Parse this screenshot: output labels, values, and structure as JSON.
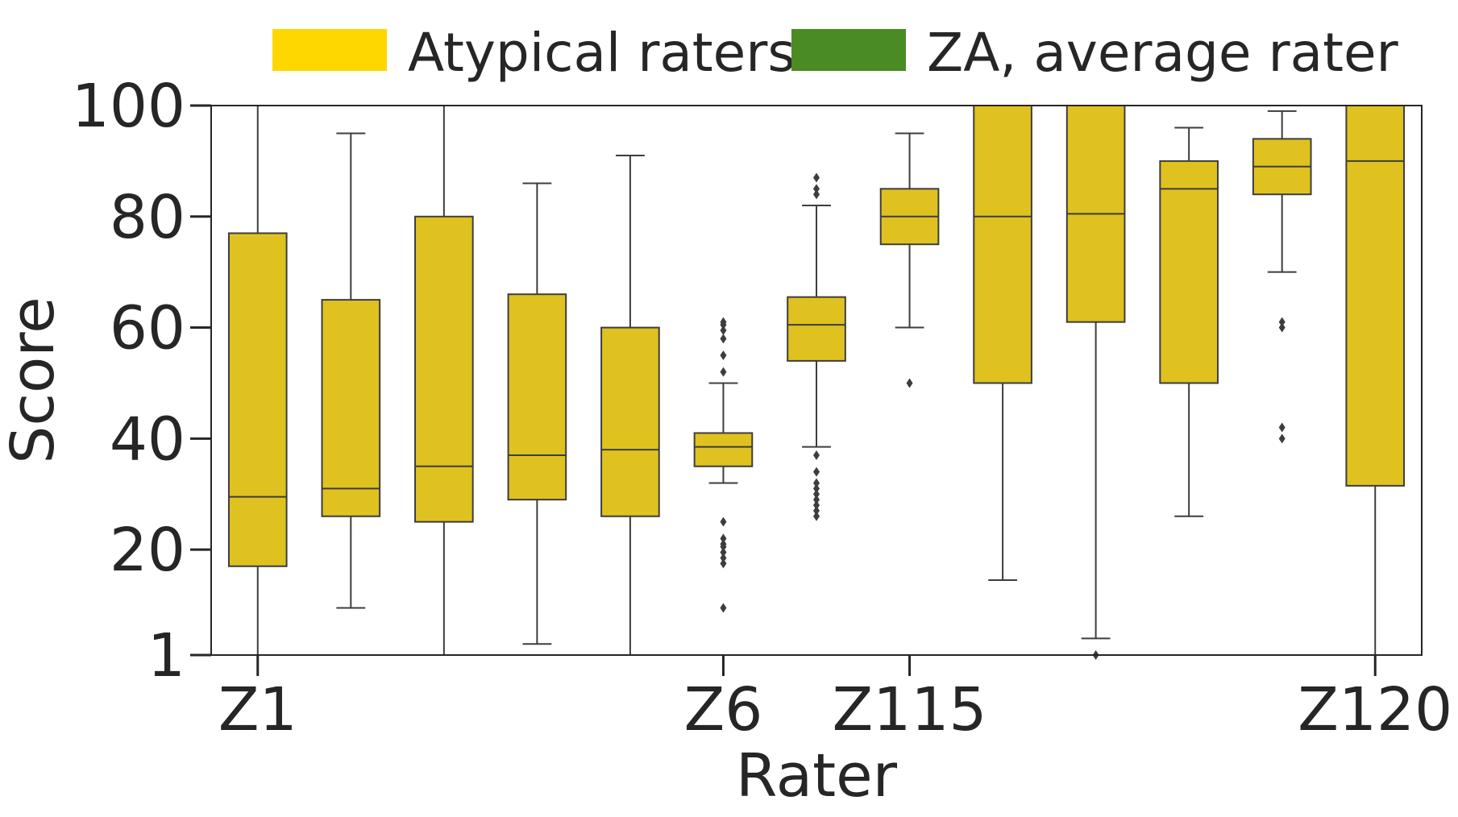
{
  "chart_data": {
    "type": "box",
    "xlabel": "Rater",
    "ylabel": "Score",
    "ylim": [
      1,
      100
    ],
    "yticks": [
      1,
      20,
      40,
      60,
      80,
      100
    ],
    "xtick_labels": [
      {
        "index": 0,
        "label": "Z1"
      },
      {
        "index": 5,
        "label": "Z6"
      },
      {
        "index": 7,
        "label": "Z115"
      },
      {
        "index": 12,
        "label": "Z120"
      }
    ],
    "legend": {
      "placement": "top",
      "entries": [
        {
          "label": "Atypical raters",
          "color": "#FFD700"
        },
        {
          "label": "ZA, average rater",
          "color": "#4B8B23"
        }
      ]
    },
    "box_color": "#DFC220",
    "series": [
      {
        "name": "Atypical raters",
        "boxes": [
          {
            "whisker_low": 1,
            "q1": 17,
            "median": 29.5,
            "q3": 77,
            "whisker_high": 100,
            "outliers": []
          },
          {
            "whisker_low": 9.5,
            "q1": 26,
            "median": 31,
            "q3": 65,
            "whisker_high": 95,
            "outliers": []
          },
          {
            "whisker_low": 1,
            "q1": 25,
            "median": 35,
            "q3": 80,
            "whisker_high": 100,
            "outliers": []
          },
          {
            "whisker_low": 3,
            "q1": 29,
            "median": 37,
            "q3": 66,
            "whisker_high": 86,
            "outliers": []
          },
          {
            "whisker_low": 1,
            "q1": 26,
            "median": 38,
            "q3": 60,
            "whisker_high": 91,
            "outliers": []
          },
          {
            "whisker_low": 32,
            "q1": 35,
            "median": 38.5,
            "q3": 41,
            "whisker_high": 50,
            "outliers": [
              9.5,
              17.5,
              18.5,
              19.5,
              20.5,
              21,
              22,
              25,
              52,
              55,
              58,
              59.5,
              60.5,
              61
            ]
          },
          {
            "whisker_low": 38.5,
            "q1": 54,
            "median": 60.5,
            "q3": 65.5,
            "whisker_high": 82,
            "outliers": [
              26,
              27,
              28,
              29,
              30,
              31,
              32,
              34,
              37,
              84,
              85,
              87
            ]
          },
          {
            "whisker_low": 60,
            "q1": 75,
            "median": 80,
            "q3": 85,
            "whisker_high": 95,
            "outliers": [
              50
            ]
          },
          {
            "whisker_low": 14.5,
            "q1": 50,
            "median": 80,
            "q3": 100,
            "whisker_high": 100,
            "outliers": []
          },
          {
            "whisker_low": 4,
            "q1": 61,
            "median": 80.5,
            "q3": 100,
            "whisker_high": 100,
            "outliers": [
              1
            ]
          },
          {
            "whisker_low": 26,
            "q1": 50,
            "median": 85,
            "q3": 90,
            "whisker_high": 96,
            "outliers": []
          },
          {
            "whisker_low": 70,
            "q1": 84,
            "median": 89,
            "q3": 94,
            "whisker_high": 99,
            "outliers": [
              40,
              42,
              60,
              61
            ]
          },
          {
            "whisker_low": 1,
            "q1": 31.5,
            "median": 90,
            "q3": 100,
            "whisker_high": 100,
            "outliers": []
          }
        ]
      }
    ]
  }
}
